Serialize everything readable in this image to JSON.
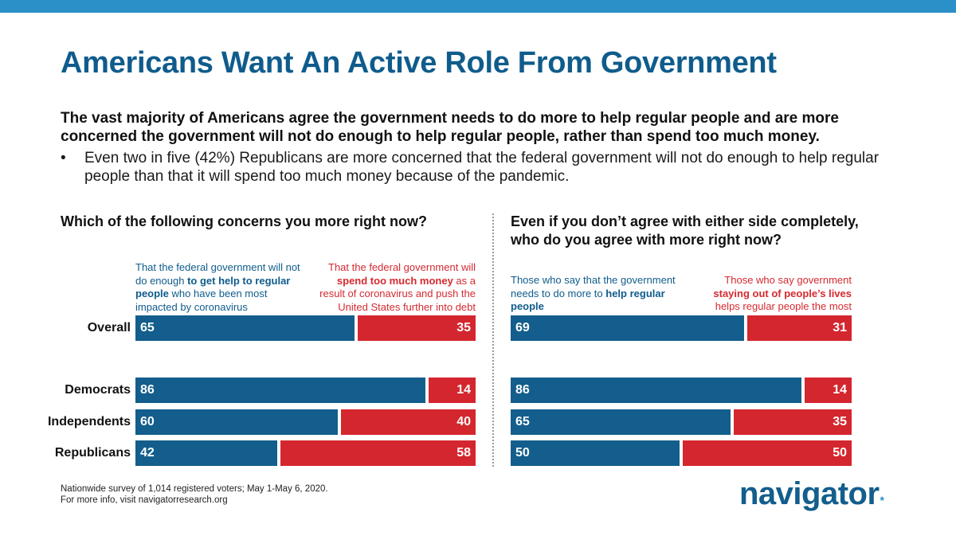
{
  "title": "Americans Want An Active Role From Government",
  "lead": "The vast majority of Americans agree the government needs to do more to help regular people and are more concerned the government will not do enough to help regular people, rather than spend too much money.",
  "bullet": {
    "marker": "•",
    "text": "Even two in five (42%) Republicans are more concerned that the federal government will not do enough to help regular people than that it will spend too much money because of the pandemic."
  },
  "left": {
    "question": "Which of the following concerns you more right now?",
    "blue_label": {
      "pre": "That the federal government will not do enough ",
      "bold": "to get help to regular people",
      "post": " who have been most impacted by coronavirus"
    },
    "red_label": {
      "pre": "That the federal government will ",
      "bold": "spend too much money",
      "post": " as a result of coronavirus and push the United States further into debt"
    }
  },
  "right": {
    "question": "Even if you don’t agree with either side completely, who do you agree with more right now?",
    "blue_label": {
      "pre": "Those who say that the government needs to do more to ",
      "bold": "help regular people",
      "post": ""
    },
    "red_label": {
      "pre": "Those who say government ",
      "bold": "staying out of people’s lives",
      "post": " helps regular people the most"
    }
  },
  "footer": {
    "line1": "Nationwide survey of 1,014 registered voters; May 1-May 6, 2020.",
    "line2": "For more info, visit navigatorresearch.org"
  },
  "logo": {
    "text": "navigator",
    "mark": "*"
  },
  "colors": {
    "blue": "#135e8c",
    "red": "#d4262e",
    "title": "#0f5c8c",
    "topbar": "#2b8fc8"
  },
  "chart_data": [
    {
      "type": "bar",
      "orientation": "horizontal",
      "stacked": true,
      "title": "Which of the following concerns you more right now?",
      "categories": [
        "Overall",
        "Democrats",
        "Independents",
        "Republicans"
      ],
      "series": [
        {
          "name": "That the federal government will not do enough to get help to regular people who have been most impacted by coronavirus",
          "values": [
            65,
            86,
            60,
            42
          ]
        },
        {
          "name": "That the federal government will spend too much money as a result of coronavirus and push the United States further into debt",
          "values": [
            35,
            14,
            40,
            58
          ]
        }
      ],
      "xlim": [
        0,
        100
      ]
    },
    {
      "type": "bar",
      "orientation": "horizontal",
      "stacked": true,
      "title": "Even if you don’t agree with either side completely, who do you agree with more right now?",
      "categories": [
        "Overall",
        "Democrats",
        "Independents",
        "Republicans"
      ],
      "series": [
        {
          "name": "Those who say that the government needs to do more to help regular people",
          "values": [
            69,
            86,
            65,
            50
          ]
        },
        {
          "name": "Those who say government staying out of people’s lives helps regular people the most",
          "values": [
            31,
            14,
            35,
            50
          ]
        }
      ],
      "xlim": [
        0,
        100
      ]
    }
  ]
}
